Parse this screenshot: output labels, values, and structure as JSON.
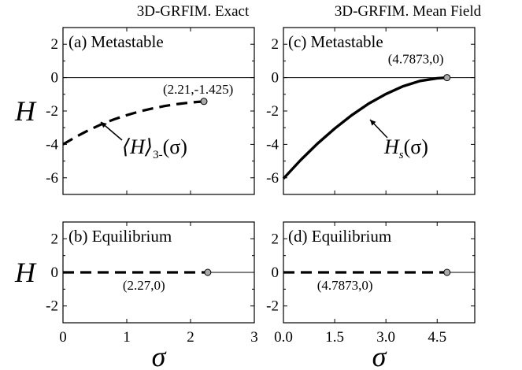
{
  "chart_data": [
    {
      "panel": "a",
      "type": "line",
      "column_title": "3D-GRFIM. Exact",
      "panel_label": "(a) Metastable",
      "xlim": [
        0,
        3
      ],
      "ylim": [
        -7,
        3
      ],
      "xticks": [],
      "yticks": [
        "2",
        "0",
        "-2",
        "-4",
        "-6"
      ],
      "ylabel": "H",
      "series": [
        {
          "style": "dashed",
          "x": [
            0,
            0.2,
            0.4,
            0.6,
            0.8,
            1.0,
            1.2,
            1.4,
            1.6,
            1.8,
            2.0,
            2.21
          ],
          "y": [
            -4.0,
            -3.55,
            -3.15,
            -2.8,
            -2.5,
            -2.25,
            -2.03,
            -1.85,
            -1.7,
            -1.58,
            -1.49,
            -1.425
          ]
        }
      ],
      "endpoint": {
        "x": 2.21,
        "y": -1.425,
        "label": "(2.21,-1.425)"
      },
      "curve_label": {
        "main": "⟨H⟩",
        "sub": "3-",
        "arg": "(σ)"
      }
    },
    {
      "panel": "c",
      "type": "line",
      "column_title": "3D-GRFIM. Mean Field",
      "panel_label": "(c) Metastable",
      "xlim": [
        0,
        5.6
      ],
      "ylim": [
        -7,
        3
      ],
      "xticks": [],
      "yticks": [
        "2",
        "0",
        "-2",
        "-4",
        "-6"
      ],
      "series": [
        {
          "style": "solid",
          "x": [
            0,
            0.5,
            1.0,
            1.5,
            2.0,
            2.5,
            3.0,
            3.5,
            4.0,
            4.5,
            4.7873
          ],
          "y": [
            -6.05,
            -4.95,
            -3.95,
            -3.05,
            -2.25,
            -1.55,
            -0.98,
            -0.52,
            -0.2,
            -0.04,
            0
          ]
        }
      ],
      "endpoint": {
        "x": 4.7873,
        "y": 0,
        "label": "(4.7873,0)"
      },
      "curve_label": {
        "main": "H",
        "sub": "s",
        "arg": "(σ)"
      }
    },
    {
      "panel": "b",
      "type": "line",
      "panel_label": "(b) Equilibrium",
      "xlim": [
        0,
        3
      ],
      "ylim": [
        -3,
        3
      ],
      "xticks": [
        "0",
        "1",
        "2",
        "3"
      ],
      "yticks": [
        "2",
        "0",
        "-2"
      ],
      "xlabel": "σ",
      "ylabel": "H",
      "series": [
        {
          "style": "dashed",
          "x": [
            0,
            2.27
          ],
          "y": [
            0,
            0
          ]
        },
        {
          "style": "solid",
          "x": [
            2.27,
            3
          ],
          "y": [
            0,
            0
          ]
        }
      ],
      "endpoint": {
        "x": 2.27,
        "y": 0,
        "label": "(2.27,0)"
      }
    },
    {
      "panel": "d",
      "type": "line",
      "panel_label": "(d) Equilibrium",
      "xlim": [
        0,
        5.6
      ],
      "ylim": [
        -3,
        3
      ],
      "xticks": [
        "0.0",
        "1.5",
        "3.0",
        "4.5"
      ],
      "yticks": [
        "2",
        "0",
        "-2"
      ],
      "xlabel": "σ",
      "series": [
        {
          "style": "dashed",
          "x": [
            0,
            4.7873
          ],
          "y": [
            0,
            0
          ]
        },
        {
          "style": "solid",
          "x": [
            4.7873,
            5.6
          ],
          "y": [
            0,
            0
          ]
        }
      ],
      "endpoint": {
        "x": 4.7873,
        "y": 0,
        "label": "(4.7873,0)"
      }
    }
  ]
}
